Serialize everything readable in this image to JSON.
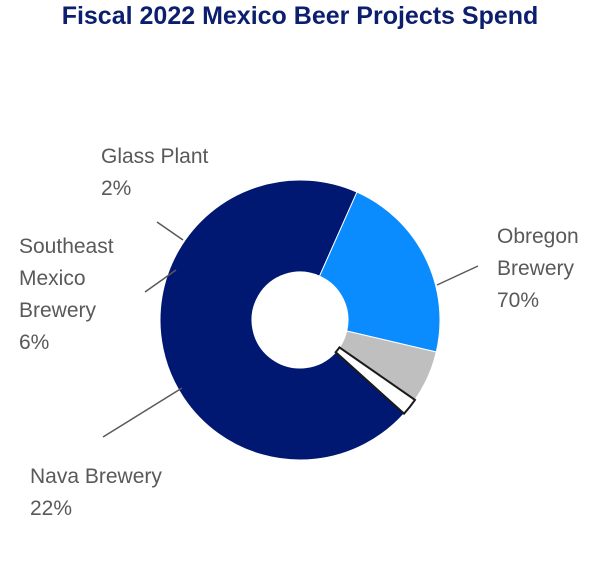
{
  "chart_data": {
    "type": "pie",
    "title": "Fiscal 2022 Mexico Beer Projects Spend",
    "categories": [
      "Obregon Brewery",
      "Nava Brewery",
      "Southeast Mexico Brewery",
      "Glass Plant"
    ],
    "values": [
      70,
      22,
      6,
      2
    ],
    "value_labels": [
      "70%",
      "22%",
      "6%",
      "2%"
    ],
    "label_lines": [
      [
        "Obregon",
        "Brewery",
        "70%"
      ],
      [
        "Nava Brewery",
        "22%"
      ],
      [
        "Southeast",
        "Mexico",
        "Brewery",
        "6%"
      ],
      [
        "Glass Plant",
        "2%"
      ]
    ],
    "colors": [
      "#001871",
      "#0A8CFF",
      "#BFBFBF",
      "#FFFFFF"
    ],
    "donut": true,
    "legend": "none"
  }
}
